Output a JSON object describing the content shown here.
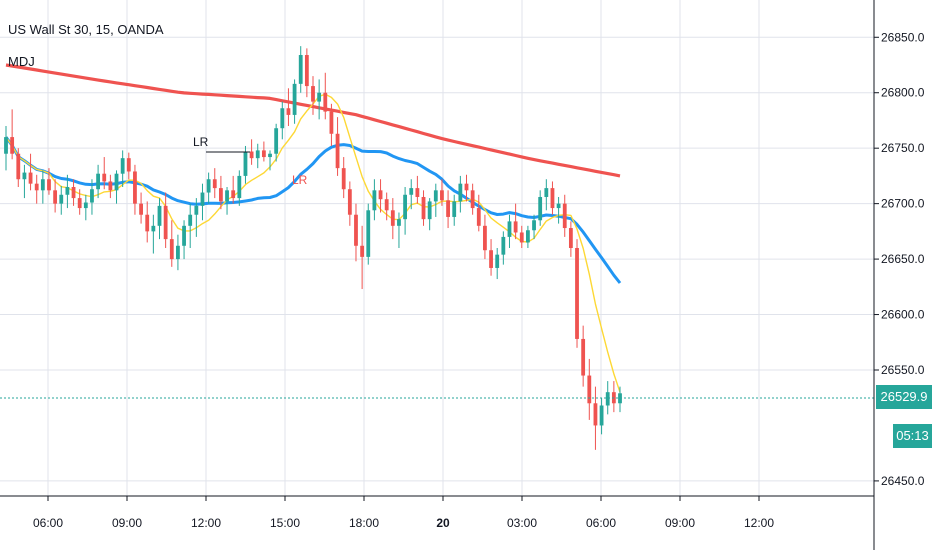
{
  "header": {
    "symbol_title": "US Wall St 30, 15, OANDA",
    "indicator_title": "MDJ"
  },
  "price_label": "26529.9",
  "countdown_label": "05:13",
  "colors": {
    "up": "#26a69a",
    "down": "#ef5350",
    "ma_red": "#ef5350",
    "ma_blue": "#2196f3",
    "ma_yellow": "#fdd835",
    "grid": "#e0e3eb"
  },
  "chart_data": {
    "type": "candlestick",
    "x_tick_labels": [
      "06:00",
      "09:00",
      "12:00",
      "15:00",
      "18:00",
      "20",
      "03:00",
      "06:00",
      "09:00",
      "12:00"
    ],
    "x_tick_bold": "20",
    "y_tick_labels": [
      "26850.0",
      "26800.0",
      "26750.0",
      "26700.0",
      "26650.0",
      "26600.0",
      "26550.0",
      "26450.0"
    ],
    "ylim": [
      26440,
      26880
    ],
    "candles": [
      [
        26745,
        26770,
        26730,
        26760
      ],
      [
        26760,
        26785,
        26740,
        26745
      ],
      [
        26745,
        26750,
        26715,
        26722
      ],
      [
        26722,
        26735,
        26705,
        26728
      ],
      [
        26728,
        26745,
        26712,
        26718
      ],
      [
        26718,
        26726,
        26700,
        26712
      ],
      [
        26712,
        26730,
        26700,
        26722
      ],
      [
        26722,
        26732,
        26708,
        26712
      ],
      [
        26712,
        26722,
        26692,
        26700
      ],
      [
        26700,
        26716,
        26690,
        26708
      ],
      [
        26708,
        26726,
        26696,
        26715
      ],
      [
        26715,
        26722,
        26698,
        26705
      ],
      [
        26705,
        26713,
        26690,
        26696
      ],
      [
        26696,
        26708,
        26685,
        26701
      ],
      [
        26701,
        26722,
        26690,
        26713
      ],
      [
        26713,
        26735,
        26705,
        26727
      ],
      [
        26727,
        26742,
        26713,
        26720
      ],
      [
        26720,
        26726,
        26705,
        26712
      ],
      [
        26712,
        26730,
        26700,
        26727
      ],
      [
        26727,
        26748,
        26715,
        26741
      ],
      [
        26741,
        26746,
        26722,
        26729
      ],
      [
        26729,
        26735,
        26690,
        26700
      ],
      [
        26700,
        26710,
        26682,
        26690
      ],
      [
        26690,
        26702,
        26665,
        26675
      ],
      [
        26675,
        26690,
        26655,
        26680
      ],
      [
        26680,
        26705,
        26668,
        26698
      ],
      [
        26698,
        26710,
        26660,
        26668
      ],
      [
        26668,
        26685,
        26643,
        26650
      ],
      [
        26650,
        26672,
        26640,
        26662
      ],
      [
        26662,
        26685,
        26650,
        26680
      ],
      [
        26680,
        26700,
        26660,
        26690
      ],
      [
        26690,
        26705,
        26670,
        26698
      ],
      [
        26698,
        26718,
        26685,
        26710
      ],
      [
        26710,
        26728,
        26700,
        26722
      ],
      [
        26722,
        26732,
        26705,
        26714
      ],
      [
        26714,
        26725,
        26695,
        26702
      ],
      [
        26702,
        26715,
        26690,
        26712
      ],
      [
        26712,
        26725,
        26700,
        26705
      ],
      [
        26705,
        26730,
        26698,
        26725
      ],
      [
        26725,
        26752,
        26718,
        26747
      ],
      [
        26747,
        26758,
        26735,
        26741
      ],
      [
        26741,
        26754,
        26732,
        26748
      ],
      [
        26748,
        26756,
        26738,
        26742
      ],
      [
        26742,
        26748,
        26730,
        26745
      ],
      [
        26745,
        26772,
        26738,
        26768
      ],
      [
        26768,
        26792,
        26758,
        26786
      ],
      [
        26786,
        26804,
        26770,
        26780
      ],
      [
        26780,
        26812,
        26772,
        26808
      ],
      [
        26808,
        26842,
        26800,
        26834
      ],
      [
        26834,
        26840,
        26796,
        26806
      ],
      [
        26806,
        26815,
        26780,
        26792
      ],
      [
        26792,
        26812,
        26776,
        26800
      ],
      [
        26800,
        26818,
        26776,
        26783
      ],
      [
        26783,
        26790,
        26752,
        26763
      ],
      [
        26763,
        26778,
        26725,
        26732
      ],
      [
        26732,
        26742,
        26705,
        26713
      ],
      [
        26713,
        26720,
        26680,
        26690
      ],
      [
        26690,
        26700,
        26648,
        26662
      ],
      [
        26662,
        26680,
        26623,
        26652
      ],
      [
        26652,
        26700,
        26645,
        26694
      ],
      [
        26694,
        26722,
        26685,
        26712
      ],
      [
        26712,
        26722,
        26692,
        26704
      ],
      [
        26704,
        26710,
        26685,
        26694
      ],
      [
        26694,
        26705,
        26668,
        26680
      ],
      [
        26680,
        26692,
        26660,
        26686
      ],
      [
        26686,
        26715,
        26672,
        26708
      ],
      [
        26708,
        26722,
        26695,
        26714
      ],
      [
        26714,
        26725,
        26700,
        26706
      ],
      [
        26706,
        26712,
        26680,
        26686
      ],
      [
        26686,
        26705,
        26676,
        26702
      ],
      [
        26702,
        26718,
        26688,
        26712
      ],
      [
        26712,
        26722,
        26698,
        26703
      ],
      [
        26703,
        26712,
        26678,
        26688
      ],
      [
        26688,
        26708,
        26680,
        26702
      ],
      [
        26702,
        26725,
        26692,
        26718
      ],
      [
        26718,
        26726,
        26702,
        26712
      ],
      [
        26712,
        26718,
        26690,
        26696
      ],
      [
        26696,
        26708,
        26675,
        26680
      ],
      [
        26680,
        26690,
        26650,
        26658
      ],
      [
        26658,
        26668,
        26635,
        26642
      ],
      [
        26642,
        26660,
        26632,
        26654
      ],
      [
        26654,
        26675,
        26645,
        26670
      ],
      [
        26670,
        26690,
        26660,
        26684
      ],
      [
        26684,
        26700,
        26668,
        26674
      ],
      [
        26674,
        26680,
        26660,
        26665
      ],
      [
        26665,
        26680,
        26660,
        26676
      ],
      [
        26676,
        26690,
        26668,
        26685
      ],
      [
        26685,
        26712,
        26680,
        26706
      ],
      [
        26706,
        26722,
        26694,
        26714
      ],
      [
        26714,
        26720,
        26690,
        26696
      ],
      [
        26696,
        26706,
        26682,
        26700
      ],
      [
        26700,
        26708,
        26670,
        26678
      ],
      [
        26678,
        26684,
        26652,
        26660
      ],
      [
        26660,
        26668,
        26570,
        26578
      ],
      [
        26578,
        26590,
        26535,
        26545
      ],
      [
        26545,
        26560,
        26505,
        26520
      ],
      [
        26520,
        26535,
        26478,
        26500
      ],
      [
        26500,
        26525,
        26492,
        26518
      ],
      [
        26518,
        26540,
        26510,
        26530
      ],
      [
        26530,
        26540,
        26512,
        26520
      ],
      [
        26520,
        26535,
        26512,
        26529
      ]
    ],
    "lr_annotations": [
      "LR",
      "LR"
    ]
  }
}
